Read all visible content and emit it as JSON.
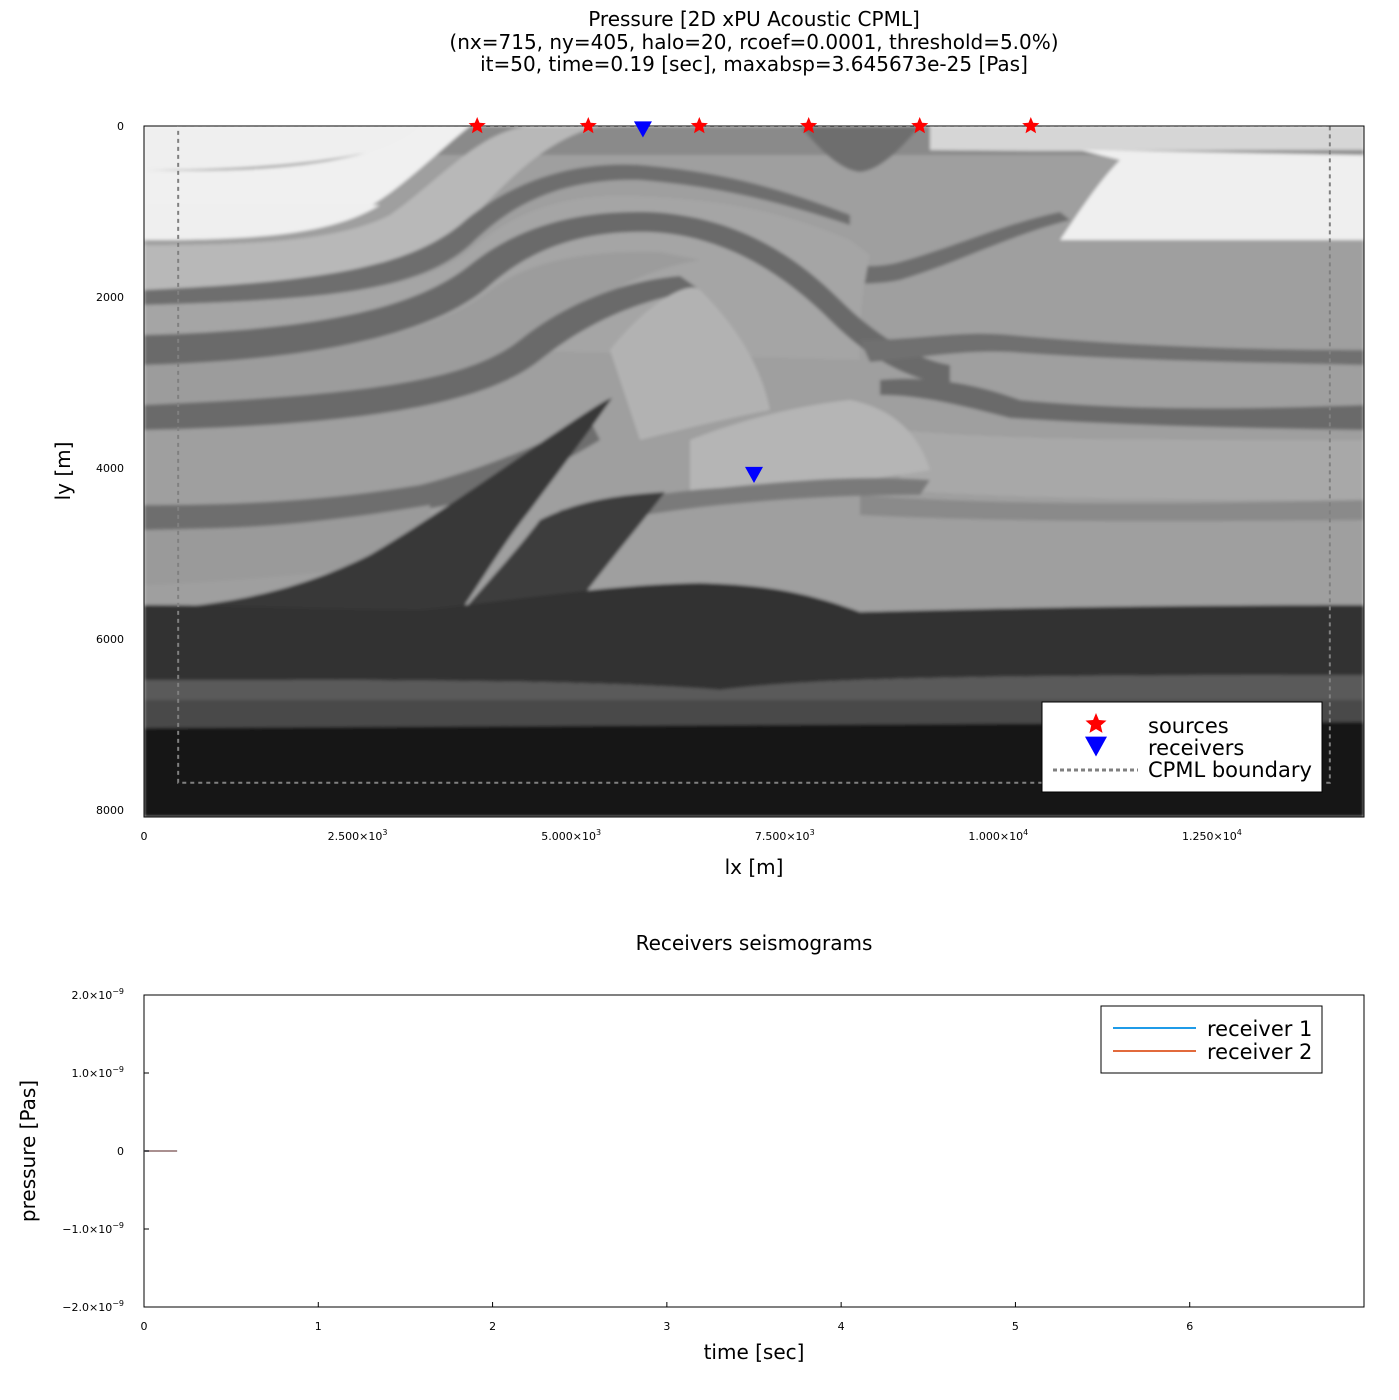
{
  "chart_data": [
    {
      "type": "heatmap",
      "title_lines": [
        "Pressure [2D xPU Acoustic CPML]",
        "(nx=715, ny=405, halo=20, rcoef=0.0001, threshold=5.0%)",
        "it=50, time=0.19 [sec], maxabsp=3.645673e-25 [Pas]"
      ],
      "xlabel": "lx [m]",
      "ylabel": "ly [m]",
      "xlim": [
        0,
        14280
      ],
      "ylim": [
        0,
        8080
      ],
      "y_reversed": true,
      "colormap": "grayscale",
      "x_ticks": [
        {
          "value": 0,
          "mantissa": "0",
          "exp": ""
        },
        {
          "value": 2500,
          "mantissa": "2.500×10",
          "exp": "3"
        },
        {
          "value": 5000,
          "mantissa": "5.000×10",
          "exp": "3"
        },
        {
          "value": 7500,
          "mantissa": "7.500×10",
          "exp": "3"
        },
        {
          "value": 10000,
          "mantissa": "1.000×10",
          "exp": "4"
        },
        {
          "value": 12500,
          "mantissa": "1.250×10",
          "exp": "4"
        }
      ],
      "y_ticks": [
        {
          "value": 0,
          "label": "0"
        },
        {
          "value": 2000,
          "label": "2000"
        },
        {
          "value": 4000,
          "label": "4000"
        },
        {
          "value": 6000,
          "label": "6000"
        },
        {
          "value": 8000,
          "label": "8000"
        }
      ],
      "sources": {
        "name": "sources",
        "color": "#ff0000",
        "x": [
          3900,
          5200,
          6500,
          7780,
          9080,
          10380
        ],
        "y": [
          0,
          0,
          0,
          0,
          0,
          0
        ]
      },
      "receivers": {
        "name": "receivers",
        "color": "#0000ff",
        "x": [
          5840,
          7140
        ],
        "y": [
          0,
          4040
        ]
      },
      "cpml_boundary": {
        "name": "CPML boundary",
        "color": "#808080",
        "x": [
          400,
          13880
        ],
        "y": [
          0,
          7680
        ]
      },
      "legend_position": "bottom-right"
    },
    {
      "type": "line",
      "title": "Receivers seismograms",
      "xlabel": "time [sec]",
      "ylabel": "pressure [Pas]",
      "xlim": [
        0,
        7.0
      ],
      "ylim": [
        -2e-09,
        2e-09
      ],
      "x_ticks": [
        {
          "value": 0,
          "label": "0"
        },
        {
          "value": 1,
          "label": "1"
        },
        {
          "value": 2,
          "label": "2"
        },
        {
          "value": 3,
          "label": "3"
        },
        {
          "value": 4,
          "label": "4"
        },
        {
          "value": 5,
          "label": "5"
        },
        {
          "value": 6,
          "label": "6"
        }
      ],
      "y_ticks": [
        {
          "value": 2e-09,
          "mantissa": "2.0×10",
          "exp": "−9"
        },
        {
          "value": 1e-09,
          "mantissa": "1.0×10",
          "exp": "−9"
        },
        {
          "value": 0,
          "mantissa": "0",
          "exp": ""
        },
        {
          "value": -1e-09,
          "mantissa": "−1.0×10",
          "exp": "−9"
        },
        {
          "value": -2e-09,
          "mantissa": "−2.0×10",
          "exp": "−9"
        }
      ],
      "series": [
        {
          "name": "receiver 1",
          "color": "#1f9be8",
          "x": [
            0,
            0.19
          ],
          "y": [
            0,
            0
          ]
        },
        {
          "name": "receiver 2",
          "color": "#e26a3c",
          "x": [
            0,
            0.19
          ],
          "y": [
            0,
            0
          ]
        }
      ],
      "legend_position": "top-right"
    }
  ]
}
